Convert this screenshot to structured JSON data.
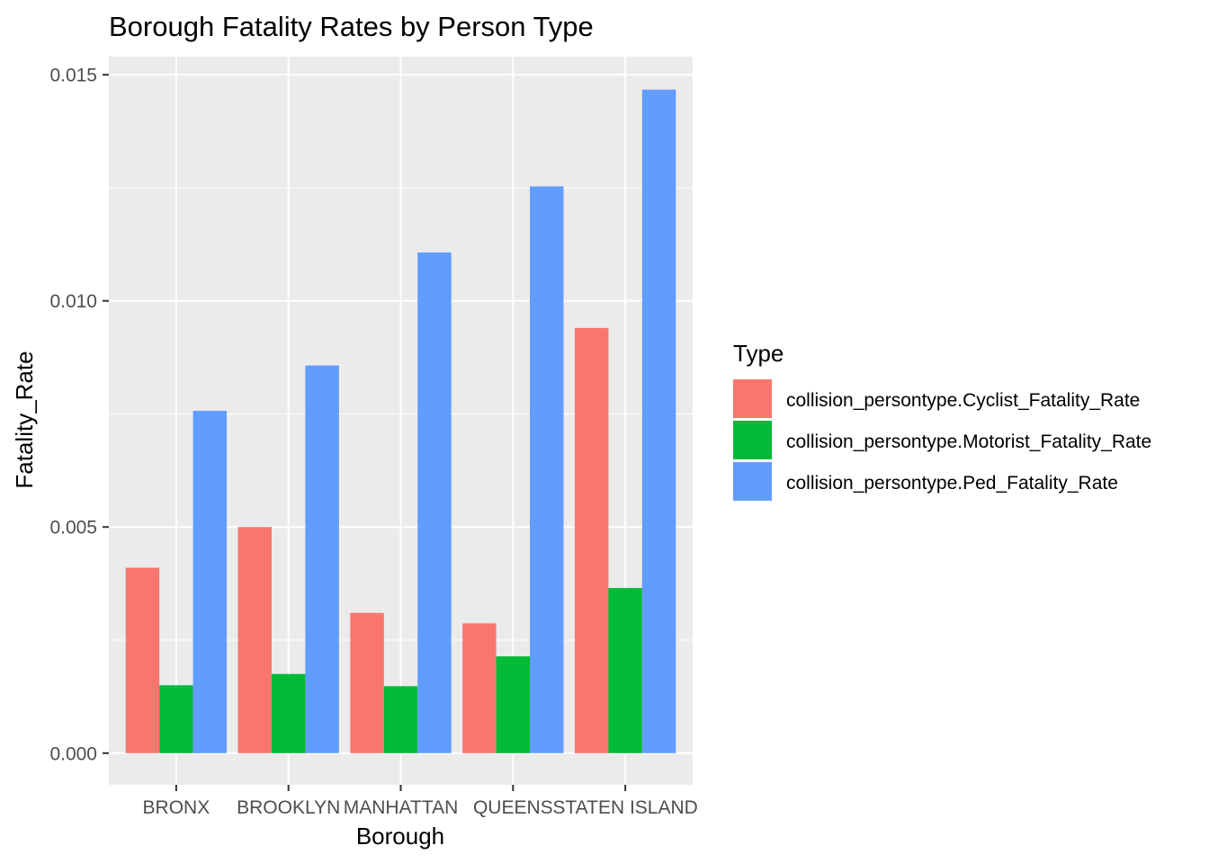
{
  "chart_data": {
    "type": "bar",
    "title": "Borough Fatality Rates by Person Type",
    "xlabel": "Borough",
    "ylabel": "Fatality_Rate",
    "categories": [
      "BRONX",
      "BROOKLYN",
      "MANHATTAN",
      "QUEENS",
      "STATEN ISLAND"
    ],
    "ylim": [
      -0.0007,
      0.0154
    ],
    "yticks": [
      0.0,
      0.005,
      0.01,
      0.015
    ],
    "ytick_labels": [
      "0.000",
      "0.005",
      "0.010",
      "0.015"
    ],
    "grid": true,
    "legend": {
      "title": "Type",
      "placement": "right"
    },
    "series": [
      {
        "name": "collision_persontype.Cyclist_Fatality_Rate",
        "color": "#F8766D",
        "values": [
          0.0041,
          0.005,
          0.0031,
          0.00287,
          0.0094
        ]
      },
      {
        "name": "collision_persontype.Motorist_Fatality_Rate",
        "color": "#00BA38",
        "values": [
          0.0015,
          0.00175,
          0.00148,
          0.00214,
          0.00365
        ]
      },
      {
        "name": "collision_persontype.Ped_Fatality_Rate",
        "color": "#619CFF",
        "values": [
          0.00757,
          0.00857,
          0.01107,
          0.01253,
          0.01467
        ]
      }
    ],
    "panel_background": "#EBEBEB",
    "grid_color": "#FFFFFF"
  }
}
